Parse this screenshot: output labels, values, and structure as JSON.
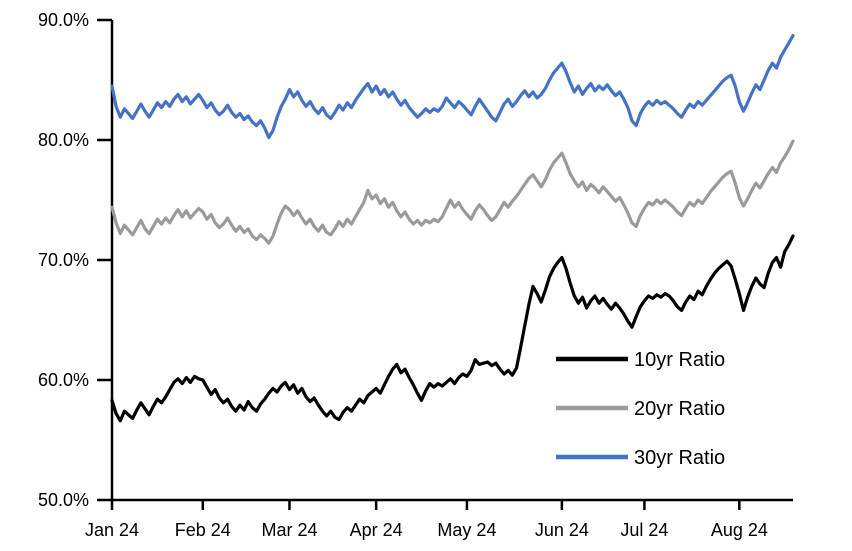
{
  "chart_data": {
    "type": "line",
    "title": "",
    "xlabel": "",
    "ylabel": "",
    "ylim": [
      50,
      90
    ],
    "y_ticks": [
      90,
      80,
      70,
      60,
      50
    ],
    "y_tick_labels": [
      "90.0%",
      "80.0%",
      "70.0%",
      "60.0%",
      "50.0%"
    ],
    "x_tick_labels": [
      "Jan 24",
      "Feb 24",
      "Mar 24",
      "Apr 24",
      "May 24",
      "Jun 24",
      "Jul 24",
      "Aug 24"
    ],
    "month_start_indices": [
      0,
      22,
      43,
      64,
      86,
      109,
      129,
      152
    ],
    "grid": false,
    "legend_position": "inside-lower-right",
    "axis_color": "#000000",
    "background_color": "#ffffff",
    "series": [
      {
        "name": "10yr Ratio",
        "color": "#000000",
        "values": [
          58.3,
          57.2,
          56.6,
          57.4,
          57.1,
          56.8,
          57.5,
          58.1,
          57.6,
          57.1,
          57.8,
          58.4,
          58.1,
          58.6,
          59.2,
          59.8,
          60.1,
          59.7,
          60.2,
          59.8,
          60.3,
          60.1,
          60.0,
          59.4,
          58.8,
          59.2,
          58.5,
          58.1,
          58.4,
          57.8,
          57.4,
          57.9,
          57.5,
          58.2,
          57.7,
          57.4,
          58.0,
          58.4,
          58.9,
          59.3,
          59.0,
          59.5,
          59.8,
          59.2,
          59.6,
          58.9,
          59.3,
          58.6,
          58.2,
          58.5,
          57.9,
          57.4,
          57.0,
          57.4,
          56.9,
          56.7,
          57.3,
          57.7,
          57.4,
          57.9,
          58.4,
          58.1,
          58.7,
          59.0,
          59.3,
          58.9,
          59.6,
          60.3,
          60.9,
          61.3,
          60.6,
          60.9,
          60.2,
          59.6,
          58.9,
          58.3,
          59.1,
          59.7,
          59.4,
          59.7,
          59.5,
          59.8,
          60.1,
          59.7,
          60.2,
          60.5,
          60.3,
          60.8,
          61.7,
          61.3,
          61.4,
          61.5,
          61.2,
          61.4,
          60.9,
          60.5,
          60.8,
          60.4,
          61.0,
          62.7,
          64.5,
          66.3,
          67.8,
          67.2,
          66.5,
          67.5,
          68.6,
          69.3,
          69.8,
          70.2,
          69.3,
          68.1,
          67.0,
          66.4,
          66.9,
          66.0,
          66.6,
          67.0,
          66.4,
          66.8,
          66.3,
          65.9,
          66.4,
          66.0,
          65.5,
          64.9,
          64.4,
          65.3,
          66.1,
          66.6,
          67.0,
          66.8,
          67.1,
          66.9,
          67.2,
          67.0,
          66.6,
          66.1,
          65.8,
          66.5,
          67.0,
          66.7,
          67.4,
          67.1,
          67.8,
          68.4,
          68.9,
          69.3,
          69.6,
          69.9,
          69.5,
          68.4,
          67.2,
          65.8,
          66.9,
          67.8,
          68.5,
          68.0,
          67.7,
          68.9,
          69.8,
          70.2,
          69.4,
          70.7,
          71.3,
          72.0
        ]
      },
      {
        "name": "20yr Ratio",
        "color": "#9a9a9a",
        "values": [
          74.4,
          73.1,
          72.2,
          72.9,
          72.5,
          72.1,
          72.7,
          73.3,
          72.6,
          72.2,
          72.8,
          73.4,
          73.0,
          73.5,
          73.1,
          73.7,
          74.2,
          73.6,
          74.1,
          73.5,
          73.9,
          74.3,
          74.0,
          73.4,
          73.8,
          73.1,
          72.7,
          73.0,
          73.5,
          72.9,
          72.4,
          72.8,
          72.3,
          72.6,
          72.0,
          71.7,
          72.1,
          71.8,
          71.4,
          72.0,
          73.0,
          73.9,
          74.5,
          74.2,
          73.7,
          74.1,
          73.5,
          73.0,
          73.4,
          72.8,
          72.4,
          72.9,
          72.3,
          72.1,
          72.6,
          73.2,
          72.8,
          73.4,
          73.0,
          73.6,
          74.2,
          74.8,
          75.8,
          75.1,
          75.4,
          74.7,
          75.1,
          74.4,
          74.8,
          74.1,
          73.6,
          74.0,
          73.4,
          73.0,
          73.3,
          72.9,
          73.3,
          73.1,
          73.4,
          73.2,
          73.6,
          74.3,
          75.0,
          74.4,
          74.8,
          74.2,
          73.8,
          73.4,
          74.1,
          74.6,
          74.2,
          73.7,
          73.3,
          73.6,
          74.2,
          74.8,
          74.4,
          74.9,
          75.3,
          75.8,
          76.3,
          76.8,
          77.1,
          76.6,
          76.1,
          76.7,
          77.5,
          78.1,
          78.5,
          78.9,
          78.1,
          77.2,
          76.6,
          76.1,
          76.5,
          75.8,
          76.3,
          76.0,
          75.6,
          76.1,
          75.7,
          75.3,
          74.9,
          75.2,
          74.6,
          73.9,
          73.1,
          72.8,
          73.7,
          74.3,
          74.8,
          74.6,
          75.0,
          74.7,
          75.0,
          74.7,
          74.4,
          74.0,
          73.7,
          74.3,
          74.8,
          74.5,
          75.0,
          74.7,
          75.2,
          75.7,
          76.1,
          76.5,
          76.9,
          77.2,
          77.4,
          76.4,
          75.2,
          74.5,
          75.1,
          75.8,
          76.4,
          76.0,
          76.6,
          77.2,
          77.7,
          77.3,
          78.1,
          78.6,
          79.2,
          79.9
        ]
      },
      {
        "name": "30yr Ratio",
        "color": "#4472c4",
        "values": [
          84.5,
          82.8,
          81.9,
          82.6,
          82.2,
          81.8,
          82.4,
          83.0,
          82.4,
          81.9,
          82.5,
          83.1,
          82.7,
          83.2,
          82.8,
          83.4,
          83.8,
          83.2,
          83.6,
          83.0,
          83.4,
          83.8,
          83.3,
          82.7,
          83.1,
          82.5,
          82.1,
          82.4,
          82.9,
          82.3,
          81.9,
          82.2,
          81.7,
          82.0,
          81.5,
          81.2,
          81.6,
          81.0,
          80.2,
          80.8,
          81.9,
          82.8,
          83.4,
          84.2,
          83.6,
          84.0,
          83.3,
          82.8,
          83.2,
          82.6,
          82.2,
          82.7,
          82.1,
          81.8,
          82.3,
          82.9,
          82.5,
          83.1,
          82.7,
          83.3,
          83.8,
          84.3,
          84.7,
          84.0,
          84.5,
          83.8,
          84.2,
          83.6,
          84.0,
          83.4,
          82.9,
          83.3,
          82.7,
          82.3,
          81.9,
          82.2,
          82.6,
          82.3,
          82.6,
          82.4,
          82.8,
          83.5,
          83.1,
          82.7,
          83.2,
          82.9,
          82.5,
          82.1,
          82.8,
          83.4,
          82.9,
          82.4,
          81.9,
          81.6,
          82.3,
          83.0,
          83.4,
          82.8,
          83.2,
          83.7,
          84.1,
          83.6,
          84.0,
          83.5,
          83.8,
          84.3,
          85.0,
          85.6,
          86.0,
          86.4,
          85.7,
          84.8,
          84.0,
          84.5,
          83.8,
          84.3,
          84.7,
          84.1,
          84.5,
          84.2,
          84.6,
          84.1,
          83.7,
          84.0,
          83.4,
          82.7,
          81.6,
          81.2,
          82.2,
          82.8,
          83.2,
          82.9,
          83.3,
          83.0,
          83.2,
          82.9,
          82.6,
          82.2,
          81.9,
          82.5,
          83.0,
          82.7,
          83.2,
          82.9,
          83.3,
          83.7,
          84.1,
          84.5,
          84.9,
          85.2,
          85.4,
          84.5,
          83.2,
          82.4,
          83.1,
          83.9,
          84.6,
          84.2,
          85.0,
          85.8,
          86.4,
          86.0,
          86.9,
          87.5,
          88.1,
          88.7
        ]
      }
    ]
  }
}
